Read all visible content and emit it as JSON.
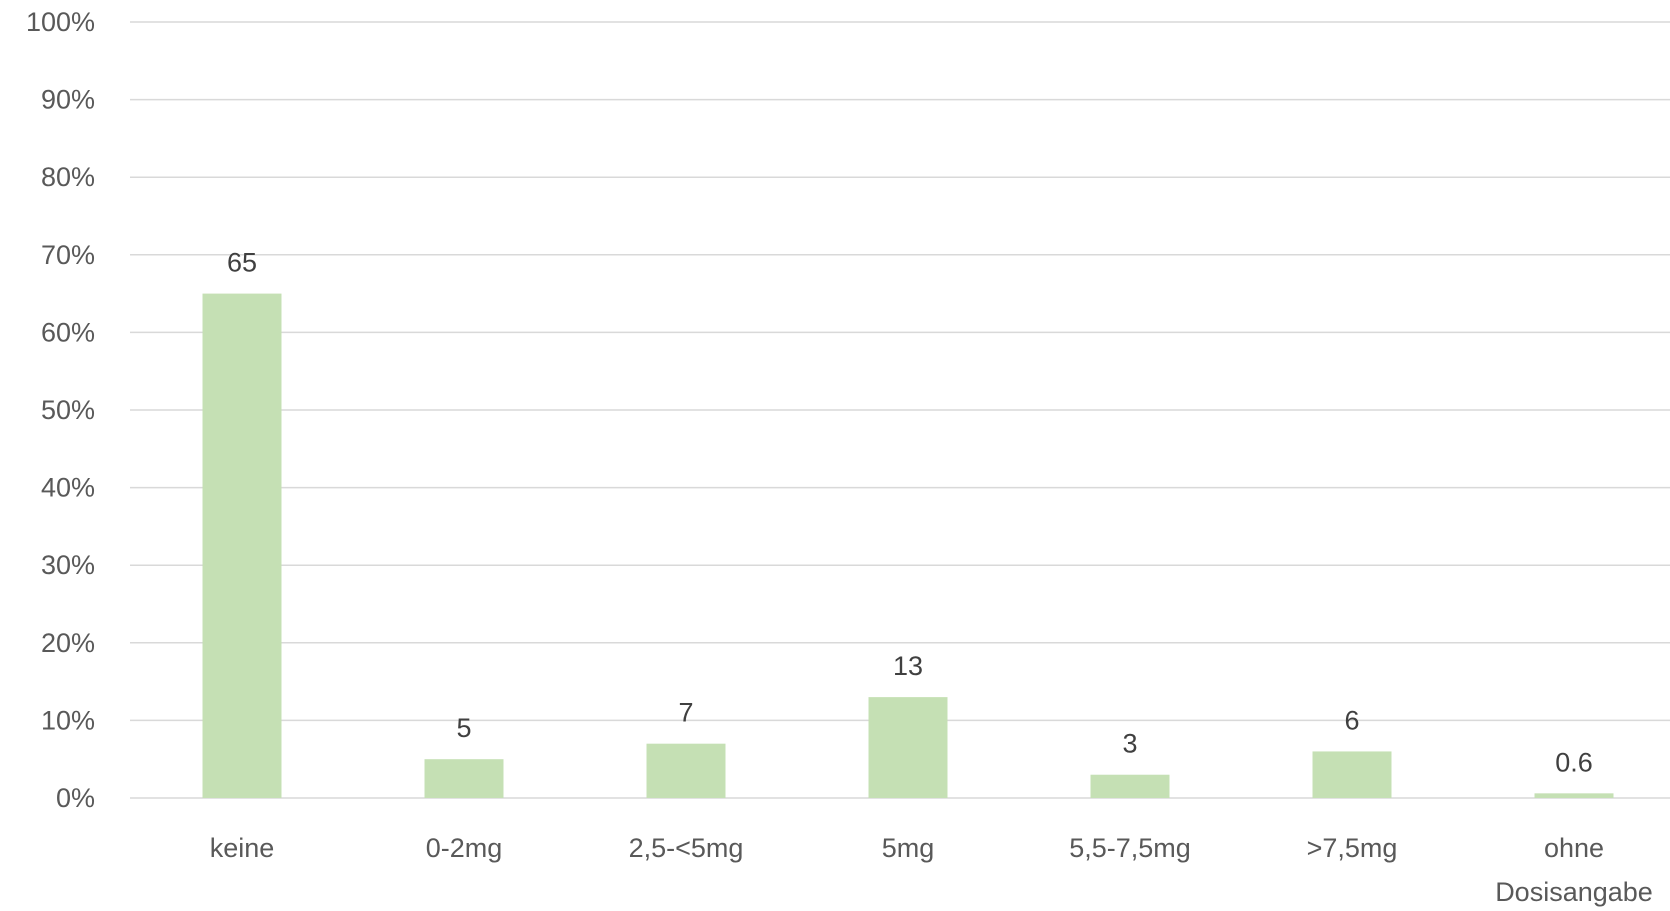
{
  "chart_data": {
    "type": "bar",
    "title": "",
    "xlabel": "",
    "ylabel": "",
    "categories": [
      [
        "keine"
      ],
      [
        "0-2mg"
      ],
      [
        "2,5-<5mg"
      ],
      [
        "5mg"
      ],
      [
        "5,5-7,5mg"
      ],
      [
        ">7,5mg"
      ],
      [
        "ohne",
        "Dosisangabe"
      ]
    ],
    "values": [
      65,
      5,
      7,
      13,
      3,
      6,
      0.6
    ],
    "data_labels": [
      "65",
      "5",
      "7",
      "13",
      "3",
      "6",
      "0.6"
    ],
    "ylim": [
      0,
      100
    ],
    "y_ticks": [
      0,
      10,
      20,
      30,
      40,
      50,
      60,
      70,
      80,
      90,
      100
    ],
    "y_tick_labels": [
      "0%",
      "10%",
      "20%",
      "30%",
      "40%",
      "50%",
      "60%",
      "70%",
      "80%",
      "90%",
      "100%"
    ],
    "grid": true,
    "legend": "none",
    "colors": {
      "bar": "#c5e0b4",
      "grid": "#d9d9d9",
      "axis_text": "#595959",
      "label_text": "#404040"
    }
  }
}
